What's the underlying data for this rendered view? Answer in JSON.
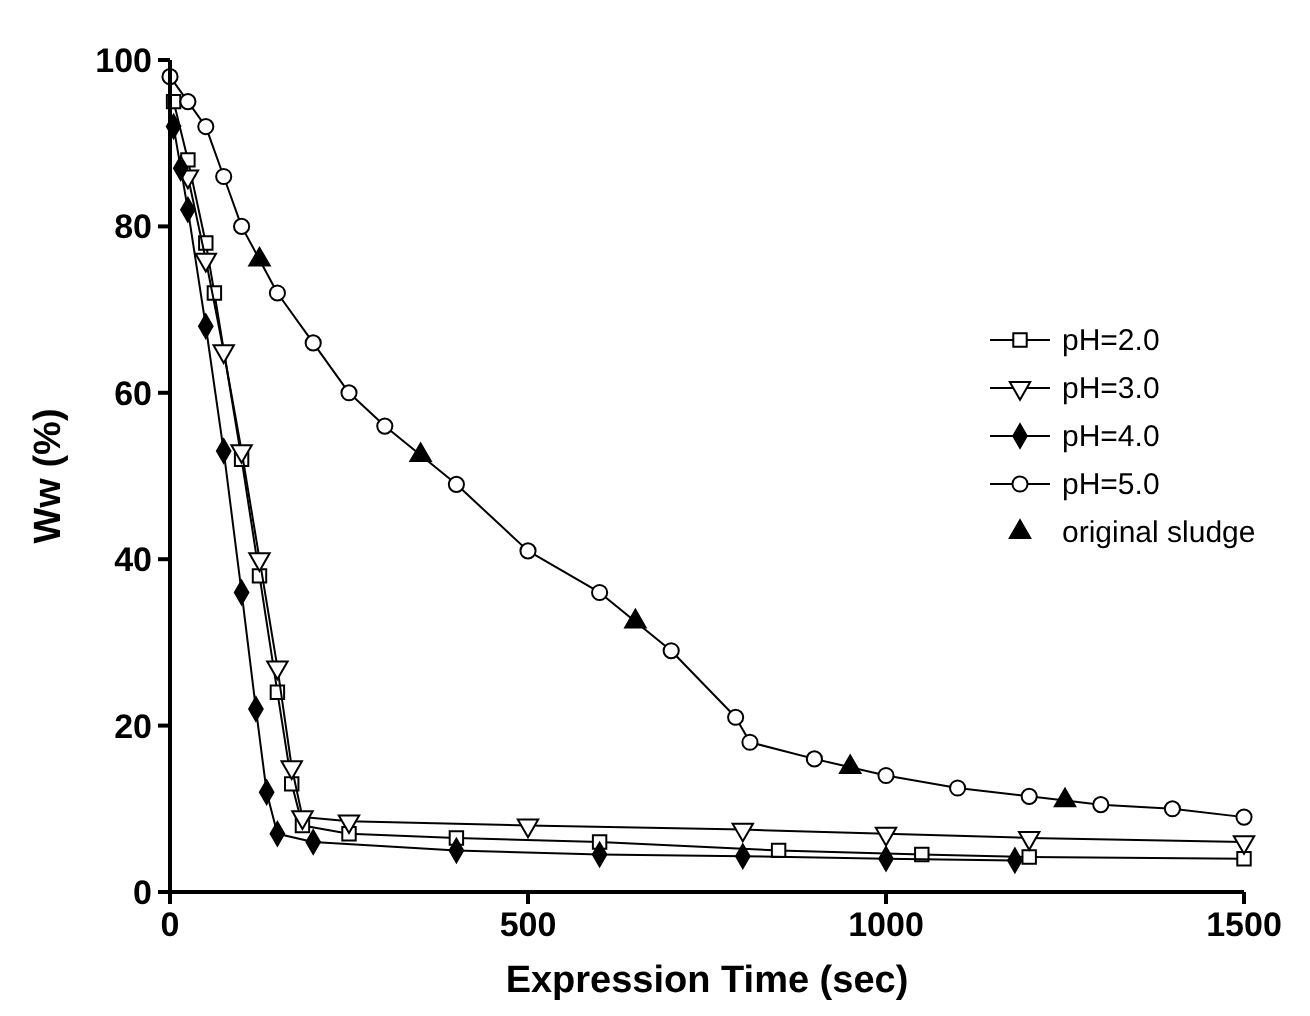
{
  "chart_data": {
    "type": "line",
    "xlabel": "Expression Time (sec)",
    "ylabel": "Ww (%)",
    "xlim": [
      0,
      1500
    ],
    "ylim": [
      0,
      100
    ],
    "xticks": [
      0,
      500,
      1000,
      1500
    ],
    "yticks": [
      0,
      20,
      40,
      60,
      80,
      100
    ],
    "grid": false,
    "legend": "right",
    "line_style": "solid",
    "series": [
      {
        "name": "pH=2.0",
        "color": "#000000",
        "marker": "square",
        "x": [
          5,
          25,
          50,
          62,
          100,
          125,
          150,
          170,
          185,
          250,
          400,
          600,
          850,
          1050,
          1200,
          1500
        ],
        "values": [
          95,
          88,
          78,
          72,
          52,
          38,
          24,
          13,
          8,
          7,
          6.5,
          6,
          5,
          4.5,
          4.2,
          4
        ]
      },
      {
        "name": "pH=3.0",
        "color": "#000000",
        "marker": "triangle-down",
        "x": [
          25,
          50,
          75,
          100,
          125,
          150,
          170,
          185,
          250,
          500,
          800,
          1000,
          1200,
          1500
        ],
        "values": [
          86,
          76,
          65,
          53,
          40,
          27,
          15,
          9,
          8.5,
          8,
          7.5,
          7,
          6.5,
          6
        ]
      },
      {
        "name": "pH=4.0",
        "color": "#000000",
        "marker": "diamond",
        "x": [
          5,
          15,
          25,
          50,
          75,
          100,
          120,
          135,
          150,
          200,
          400,
          600,
          800,
          1000,
          1180
        ],
        "values": [
          92,
          87,
          82,
          68,
          53,
          36,
          22,
          12,
          7,
          6,
          5,
          4.5,
          4.3,
          4,
          3.8
        ]
      },
      {
        "name": "pH=5.0",
        "color": "#000000",
        "marker": "circle",
        "x": [
          0,
          25,
          50,
          75,
          100,
          150,
          200,
          250,
          300,
          400,
          500,
          600,
          700,
          790,
          810,
          900,
          1000,
          1100,
          1200,
          1300,
          1400,
          1500
        ],
        "values": [
          98,
          95,
          92,
          86,
          80,
          72,
          66,
          60,
          56,
          49,
          41,
          36,
          29,
          21,
          18,
          16,
          14,
          12.5,
          11.5,
          10.5,
          10,
          9
        ]
      },
      {
        "name": "original sludge",
        "color": "#000000",
        "type": "scatter",
        "marker": "triangle",
        "x": [
          125,
          350,
          650,
          950,
          1250
        ],
        "values": [
          76,
          52.5,
          32.5,
          15,
          11
        ]
      }
    ]
  }
}
